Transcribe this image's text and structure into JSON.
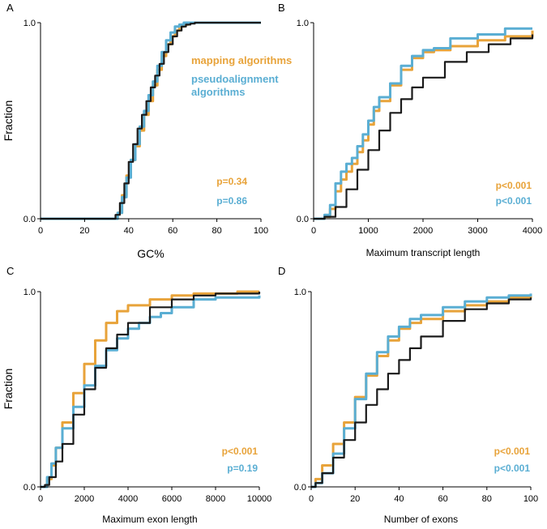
{
  "colors": {
    "mapping": "#e8a33a",
    "pseudo": "#5aaed3",
    "background": "#1a1a1a",
    "axis": "#000000"
  },
  "legend": {
    "mapping": "mapping algorithms",
    "pseudo_line1": "pseudoalignment",
    "pseudo_line2": "algorithms"
  },
  "chart_data": [
    {
      "panel": "A",
      "type": "line",
      "xlabel": "GC%",
      "ylabel": "Fraction",
      "xlim": [
        0,
        100
      ],
      "ylim": [
        0,
        1
      ],
      "xticks": [
        "0",
        "20",
        "40",
        "60",
        "80",
        "100"
      ],
      "yticks": [
        "0.0",
        "1.0"
      ],
      "pvalues": {
        "mapping": "p=0.34",
        "pseudo": "p=0.86"
      },
      "series": [
        {
          "name": "background",
          "x": [
            0,
            32,
            34,
            36,
            38,
            40,
            42,
            44,
            46,
            48,
            50,
            52,
            54,
            56,
            58,
            60,
            62,
            64,
            66,
            68,
            70,
            75,
            100
          ],
          "y": [
            0,
            0,
            0.02,
            0.08,
            0.18,
            0.29,
            0.38,
            0.46,
            0.53,
            0.6,
            0.67,
            0.73,
            0.79,
            0.85,
            0.89,
            0.93,
            0.96,
            0.98,
            0.99,
            0.995,
            1,
            1,
            1
          ]
        },
        {
          "name": "mapping",
          "x": [
            0,
            33,
            35,
            37,
            39,
            41,
            43,
            45,
            47,
            49,
            51,
            53,
            55,
            57,
            59,
            61,
            63,
            65,
            67,
            69,
            100
          ],
          "y": [
            0,
            0,
            0.03,
            0.12,
            0.22,
            0.3,
            0.37,
            0.45,
            0.53,
            0.6,
            0.68,
            0.76,
            0.83,
            0.89,
            0.93,
            0.96,
            0.98,
            0.99,
            1,
            1,
            1
          ]
        },
        {
          "name": "pseudo",
          "x": [
            0,
            33,
            35,
            37,
            39,
            41,
            43,
            45,
            47,
            49,
            51,
            53,
            55,
            57,
            59,
            61,
            63,
            65,
            67,
            69,
            100
          ],
          "y": [
            0,
            0,
            0.03,
            0.11,
            0.21,
            0.3,
            0.38,
            0.47,
            0.55,
            0.63,
            0.7,
            0.78,
            0.85,
            0.91,
            0.95,
            0.98,
            0.99,
            1,
            1,
            1,
            1
          ]
        }
      ]
    },
    {
      "panel": "B",
      "type": "line",
      "xlabel": "Maximum transcript length",
      "ylabel": "",
      "xlim": [
        0,
        4000
      ],
      "ylim": [
        0,
        1
      ],
      "xticks": [
        "0",
        "1000",
        "2000",
        "3000",
        "4000"
      ],
      "yticks": [
        "0.0",
        "1.0"
      ],
      "pvalues": {
        "mapping": "p<0.001",
        "pseudo": "p<0.001"
      },
      "series": [
        {
          "name": "background",
          "x": [
            0,
            200,
            400,
            600,
            800,
            1000,
            1200,
            1400,
            1600,
            1800,
            2000,
            2400,
            2800,
            3200,
            3600,
            4000
          ],
          "y": [
            0,
            0.01,
            0.06,
            0.15,
            0.25,
            0.35,
            0.45,
            0.54,
            0.61,
            0.67,
            0.72,
            0.8,
            0.85,
            0.89,
            0.92,
            0.94
          ]
        },
        {
          "name": "mapping",
          "x": [
            0,
            200,
            300,
            400,
            500,
            600,
            700,
            800,
            900,
            1000,
            1100,
            1200,
            1400,
            1600,
            1800,
            2000,
            2200,
            2500,
            3000,
            3500,
            4000
          ],
          "y": [
            0,
            0.01,
            0.05,
            0.14,
            0.2,
            0.24,
            0.28,
            0.34,
            0.4,
            0.48,
            0.55,
            0.6,
            0.68,
            0.76,
            0.82,
            0.85,
            0.86,
            0.88,
            0.91,
            0.93,
            0.96
          ]
        },
        {
          "name": "pseudo",
          "x": [
            0,
            200,
            300,
            400,
            500,
            600,
            700,
            800,
            900,
            1000,
            1100,
            1200,
            1400,
            1600,
            1800,
            2000,
            2200,
            2500,
            3000,
            3500,
            4000
          ],
          "y": [
            0,
            0.02,
            0.07,
            0.18,
            0.24,
            0.28,
            0.31,
            0.37,
            0.43,
            0.5,
            0.57,
            0.62,
            0.69,
            0.78,
            0.83,
            0.86,
            0.87,
            0.92,
            0.94,
            0.97,
            0.97
          ]
        }
      ]
    },
    {
      "panel": "C",
      "type": "line",
      "xlabel": "Maximum exon length",
      "ylabel": "Fraction",
      "xlim": [
        0,
        10000
      ],
      "ylim": [
        0,
        1
      ],
      "xticks": [
        "0",
        "2000",
        "4000",
        "6000",
        "8000",
        "10000"
      ],
      "yticks": [
        "0.0",
        "1.0"
      ],
      "pvalues": {
        "mapping": "p<0.001",
        "pseudo": "p=0.19"
      },
      "series": [
        {
          "name": "background",
          "x": [
            0,
            200,
            400,
            700,
            1000,
            1500,
            2000,
            2500,
            3000,
            3500,
            4000,
            5000,
            6000,
            7000,
            8000,
            10000
          ],
          "y": [
            0,
            0.01,
            0.05,
            0.13,
            0.22,
            0.37,
            0.5,
            0.61,
            0.71,
            0.78,
            0.84,
            0.92,
            0.96,
            0.98,
            0.99,
            1
          ]
        },
        {
          "name": "mapping",
          "x": [
            0,
            300,
            500,
            700,
            1000,
            1500,
            2000,
            2500,
            3000,
            3500,
            4000,
            5000,
            6000,
            7000,
            8000,
            9000,
            10000
          ],
          "y": [
            0,
            0.04,
            0.11,
            0.2,
            0.33,
            0.48,
            0.63,
            0.75,
            0.84,
            0.9,
            0.93,
            0.96,
            0.98,
            0.99,
            0.99,
            1,
            1
          ]
        },
        {
          "name": "pseudo",
          "x": [
            0,
            300,
            500,
            700,
            1000,
            1500,
            2000,
            2500,
            3000,
            3500,
            4000,
            4500,
            5000,
            5500,
            6000,
            7000,
            8000,
            10000
          ],
          "y": [
            0,
            0.05,
            0.12,
            0.2,
            0.3,
            0.41,
            0.52,
            0.62,
            0.7,
            0.76,
            0.81,
            0.84,
            0.87,
            0.89,
            0.92,
            0.96,
            0.97,
            0.98
          ]
        }
      ]
    },
    {
      "panel": "D",
      "type": "line",
      "xlabel": "Number of exons",
      "ylabel": "",
      "xlim": [
        0,
        100
      ],
      "ylim": [
        0,
        1
      ],
      "xticks": [
        "0",
        "20",
        "40",
        "60",
        "80",
        "100"
      ],
      "yticks": [
        "0.0",
        "1.0"
      ],
      "pvalues": {
        "mapping": "p<0.001",
        "pseudo": "p<0.001"
      },
      "series": [
        {
          "name": "background",
          "x": [
            0,
            2,
            5,
            10,
            15,
            20,
            25,
            30,
            35,
            40,
            45,
            50,
            60,
            70,
            80,
            90,
            100
          ],
          "y": [
            0,
            0.02,
            0.07,
            0.15,
            0.24,
            0.33,
            0.42,
            0.5,
            0.58,
            0.65,
            0.71,
            0.77,
            0.85,
            0.91,
            0.94,
            0.96,
            0.97
          ]
        },
        {
          "name": "mapping",
          "x": [
            0,
            2,
            5,
            10,
            15,
            20,
            25,
            30,
            35,
            40,
            45,
            50,
            60,
            70,
            80,
            90,
            100
          ],
          "y": [
            0,
            0.04,
            0.11,
            0.22,
            0.33,
            0.46,
            0.57,
            0.67,
            0.75,
            0.81,
            0.84,
            0.86,
            0.9,
            0.93,
            0.95,
            0.97,
            0.98
          ]
        },
        {
          "name": "pseudo",
          "x": [
            0,
            2,
            5,
            10,
            15,
            20,
            25,
            30,
            35,
            40,
            45,
            50,
            60,
            70,
            80,
            90,
            100
          ],
          "y": [
            0,
            0.02,
            0.07,
            0.17,
            0.3,
            0.45,
            0.58,
            0.69,
            0.77,
            0.82,
            0.86,
            0.88,
            0.92,
            0.95,
            0.97,
            0.98,
            0.99
          ]
        }
      ]
    }
  ]
}
